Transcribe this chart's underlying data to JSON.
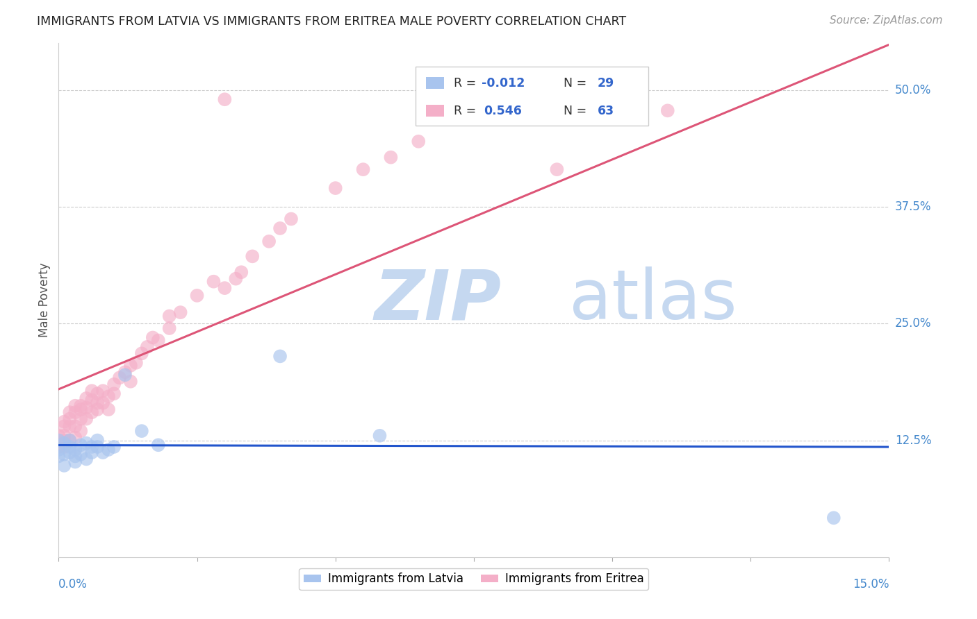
{
  "title": "IMMIGRANTS FROM LATVIA VS IMMIGRANTS FROM ERITREA MALE POVERTY CORRELATION CHART",
  "source": "Source: ZipAtlas.com",
  "ylabel": "Male Poverty",
  "ytick_labels": [
    "50.0%",
    "37.5%",
    "25.0%",
    "12.5%"
  ],
  "ytick_values": [
    0.5,
    0.375,
    0.25,
    0.125
  ],
  "xlim": [
    0.0,
    0.15
  ],
  "ylim": [
    0.0,
    0.55
  ],
  "color_latvia": "#a8c4ee",
  "color_eritrea": "#f4afc8",
  "trendline_latvia_color": "#2255cc",
  "trendline_eritrea_color": "#dd5577",
  "watermark_zip": "ZIP",
  "watermark_atlas": "atlas",
  "watermark_color_zip": "#c5d8f0",
  "watermark_color_atlas": "#c5d8f0",
  "background_color": "#ffffff",
  "grid_color": "#cccccc",
  "latvia_x": [
    0.0,
    0.0,
    0.0,
    0.001,
    0.001,
    0.001,
    0.002,
    0.002,
    0.002,
    0.003,
    0.003,
    0.003,
    0.004,
    0.004,
    0.005,
    0.005,
    0.006,
    0.006,
    0.007,
    0.007,
    0.008,
    0.009,
    0.01,
    0.012,
    0.015,
    0.018,
    0.04,
    0.058,
    0.14
  ],
  "latvia_y": [
    0.125,
    0.115,
    0.108,
    0.122,
    0.11,
    0.098,
    0.118,
    0.125,
    0.112,
    0.115,
    0.108,
    0.102,
    0.12,
    0.11,
    0.122,
    0.105,
    0.118,
    0.112,
    0.118,
    0.125,
    0.112,
    0.115,
    0.118,
    0.195,
    0.135,
    0.12,
    0.215,
    0.13,
    0.042
  ],
  "eritrea_x": [
    0.0,
    0.0,
    0.001,
    0.001,
    0.001,
    0.001,
    0.001,
    0.002,
    0.002,
    0.002,
    0.002,
    0.003,
    0.003,
    0.003,
    0.003,
    0.004,
    0.004,
    0.004,
    0.004,
    0.005,
    0.005,
    0.005,
    0.006,
    0.006,
    0.006,
    0.007,
    0.007,
    0.007,
    0.008,
    0.008,
    0.009,
    0.009,
    0.01,
    0.01,
    0.011,
    0.012,
    0.013,
    0.013,
    0.014,
    0.015,
    0.016,
    0.017,
    0.018,
    0.02,
    0.02,
    0.022,
    0.025,
    0.028,
    0.03,
    0.032,
    0.033,
    0.035,
    0.038,
    0.04,
    0.042,
    0.05,
    0.055,
    0.06,
    0.065,
    0.08,
    0.09,
    0.11,
    0.03
  ],
  "eritrea_y": [
    0.13,
    0.118,
    0.14,
    0.125,
    0.145,
    0.118,
    0.13,
    0.155,
    0.14,
    0.125,
    0.148,
    0.155,
    0.14,
    0.162,
    0.128,
    0.158,
    0.148,
    0.162,
    0.135,
    0.16,
    0.148,
    0.17,
    0.155,
    0.168,
    0.178,
    0.165,
    0.175,
    0.158,
    0.165,
    0.178,
    0.172,
    0.158,
    0.175,
    0.185,
    0.192,
    0.198,
    0.205,
    0.188,
    0.208,
    0.218,
    0.225,
    0.235,
    0.232,
    0.245,
    0.258,
    0.262,
    0.28,
    0.295,
    0.288,
    0.298,
    0.305,
    0.322,
    0.338,
    0.352,
    0.362,
    0.395,
    0.415,
    0.428,
    0.445,
    0.488,
    0.415,
    0.478,
    0.49
  ]
}
